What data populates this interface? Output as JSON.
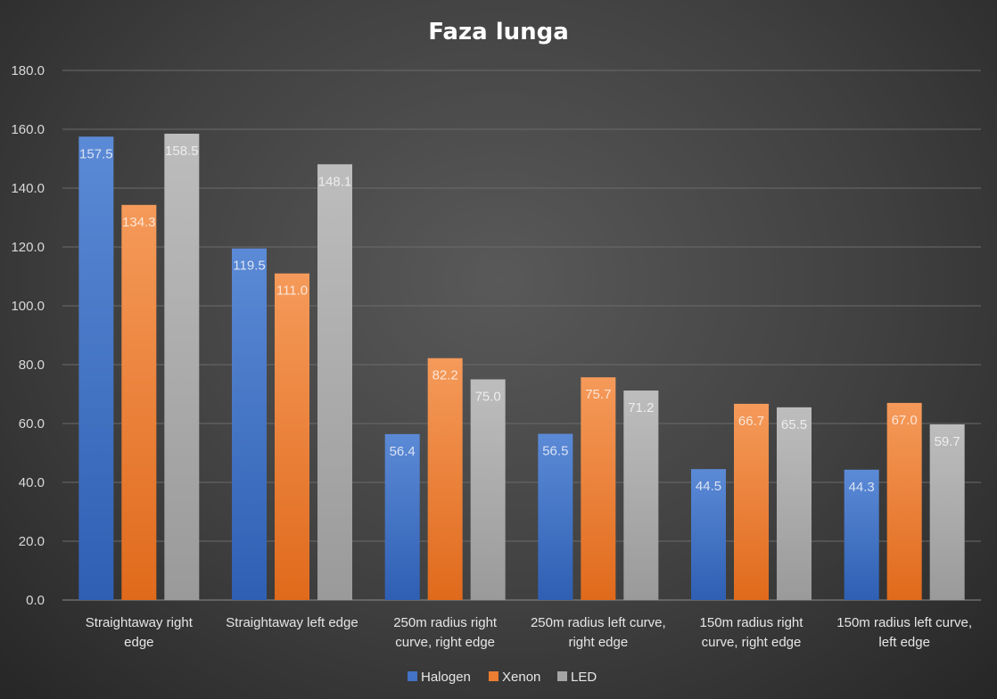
{
  "chart_data": {
    "type": "bar",
    "title": "Faza lunga",
    "categories": [
      [
        "Straightaway right",
        "edge"
      ],
      [
        "Straightaway left edge"
      ],
      [
        "250m radius right",
        "curve, right edge"
      ],
      [
        "250m radius left curve,",
        "right edge"
      ],
      [
        "150m radius right",
        "curve, right edge"
      ],
      [
        "150m radius left curve,",
        "left edge"
      ]
    ],
    "series": [
      {
        "name": "Halogen",
        "color": "#4472c4",
        "values": [
          157.5,
          119.5,
          56.4,
          56.5,
          44.5,
          44.3
        ]
      },
      {
        "name": "Xenon",
        "color": "#ed7d31",
        "values": [
          134.3,
          111.0,
          82.2,
          75.7,
          66.7,
          67.0
        ]
      },
      {
        "name": "LED",
        "color": "#a5a5a5",
        "values": [
          158.5,
          148.1,
          75.0,
          71.2,
          65.5,
          59.7
        ]
      }
    ],
    "ylim": [
      0,
      180
    ],
    "ytick_step": 20,
    "grid": true,
    "legend_position": "bottom",
    "value_decimals": 1
  }
}
